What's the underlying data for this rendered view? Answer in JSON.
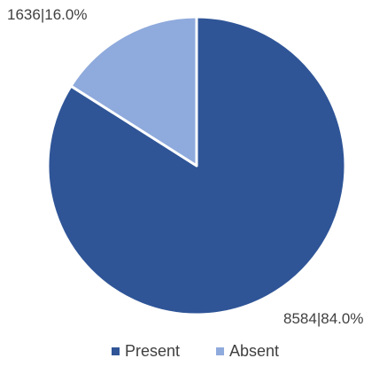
{
  "chart_data": {
    "type": "pie",
    "title": "",
    "start_angle_deg": 0,
    "direction": "clockwise",
    "legend_position": "bottom",
    "slices": [
      {
        "name": "Present",
        "value": 8584,
        "percent": "84.0%",
        "label": "8584|84.0%",
        "color": "#2f5597"
      },
      {
        "name": "Absent",
        "value": 1636,
        "percent": "16.0%",
        "label": "1636|16.0%",
        "color": "#8faadc"
      }
    ]
  }
}
